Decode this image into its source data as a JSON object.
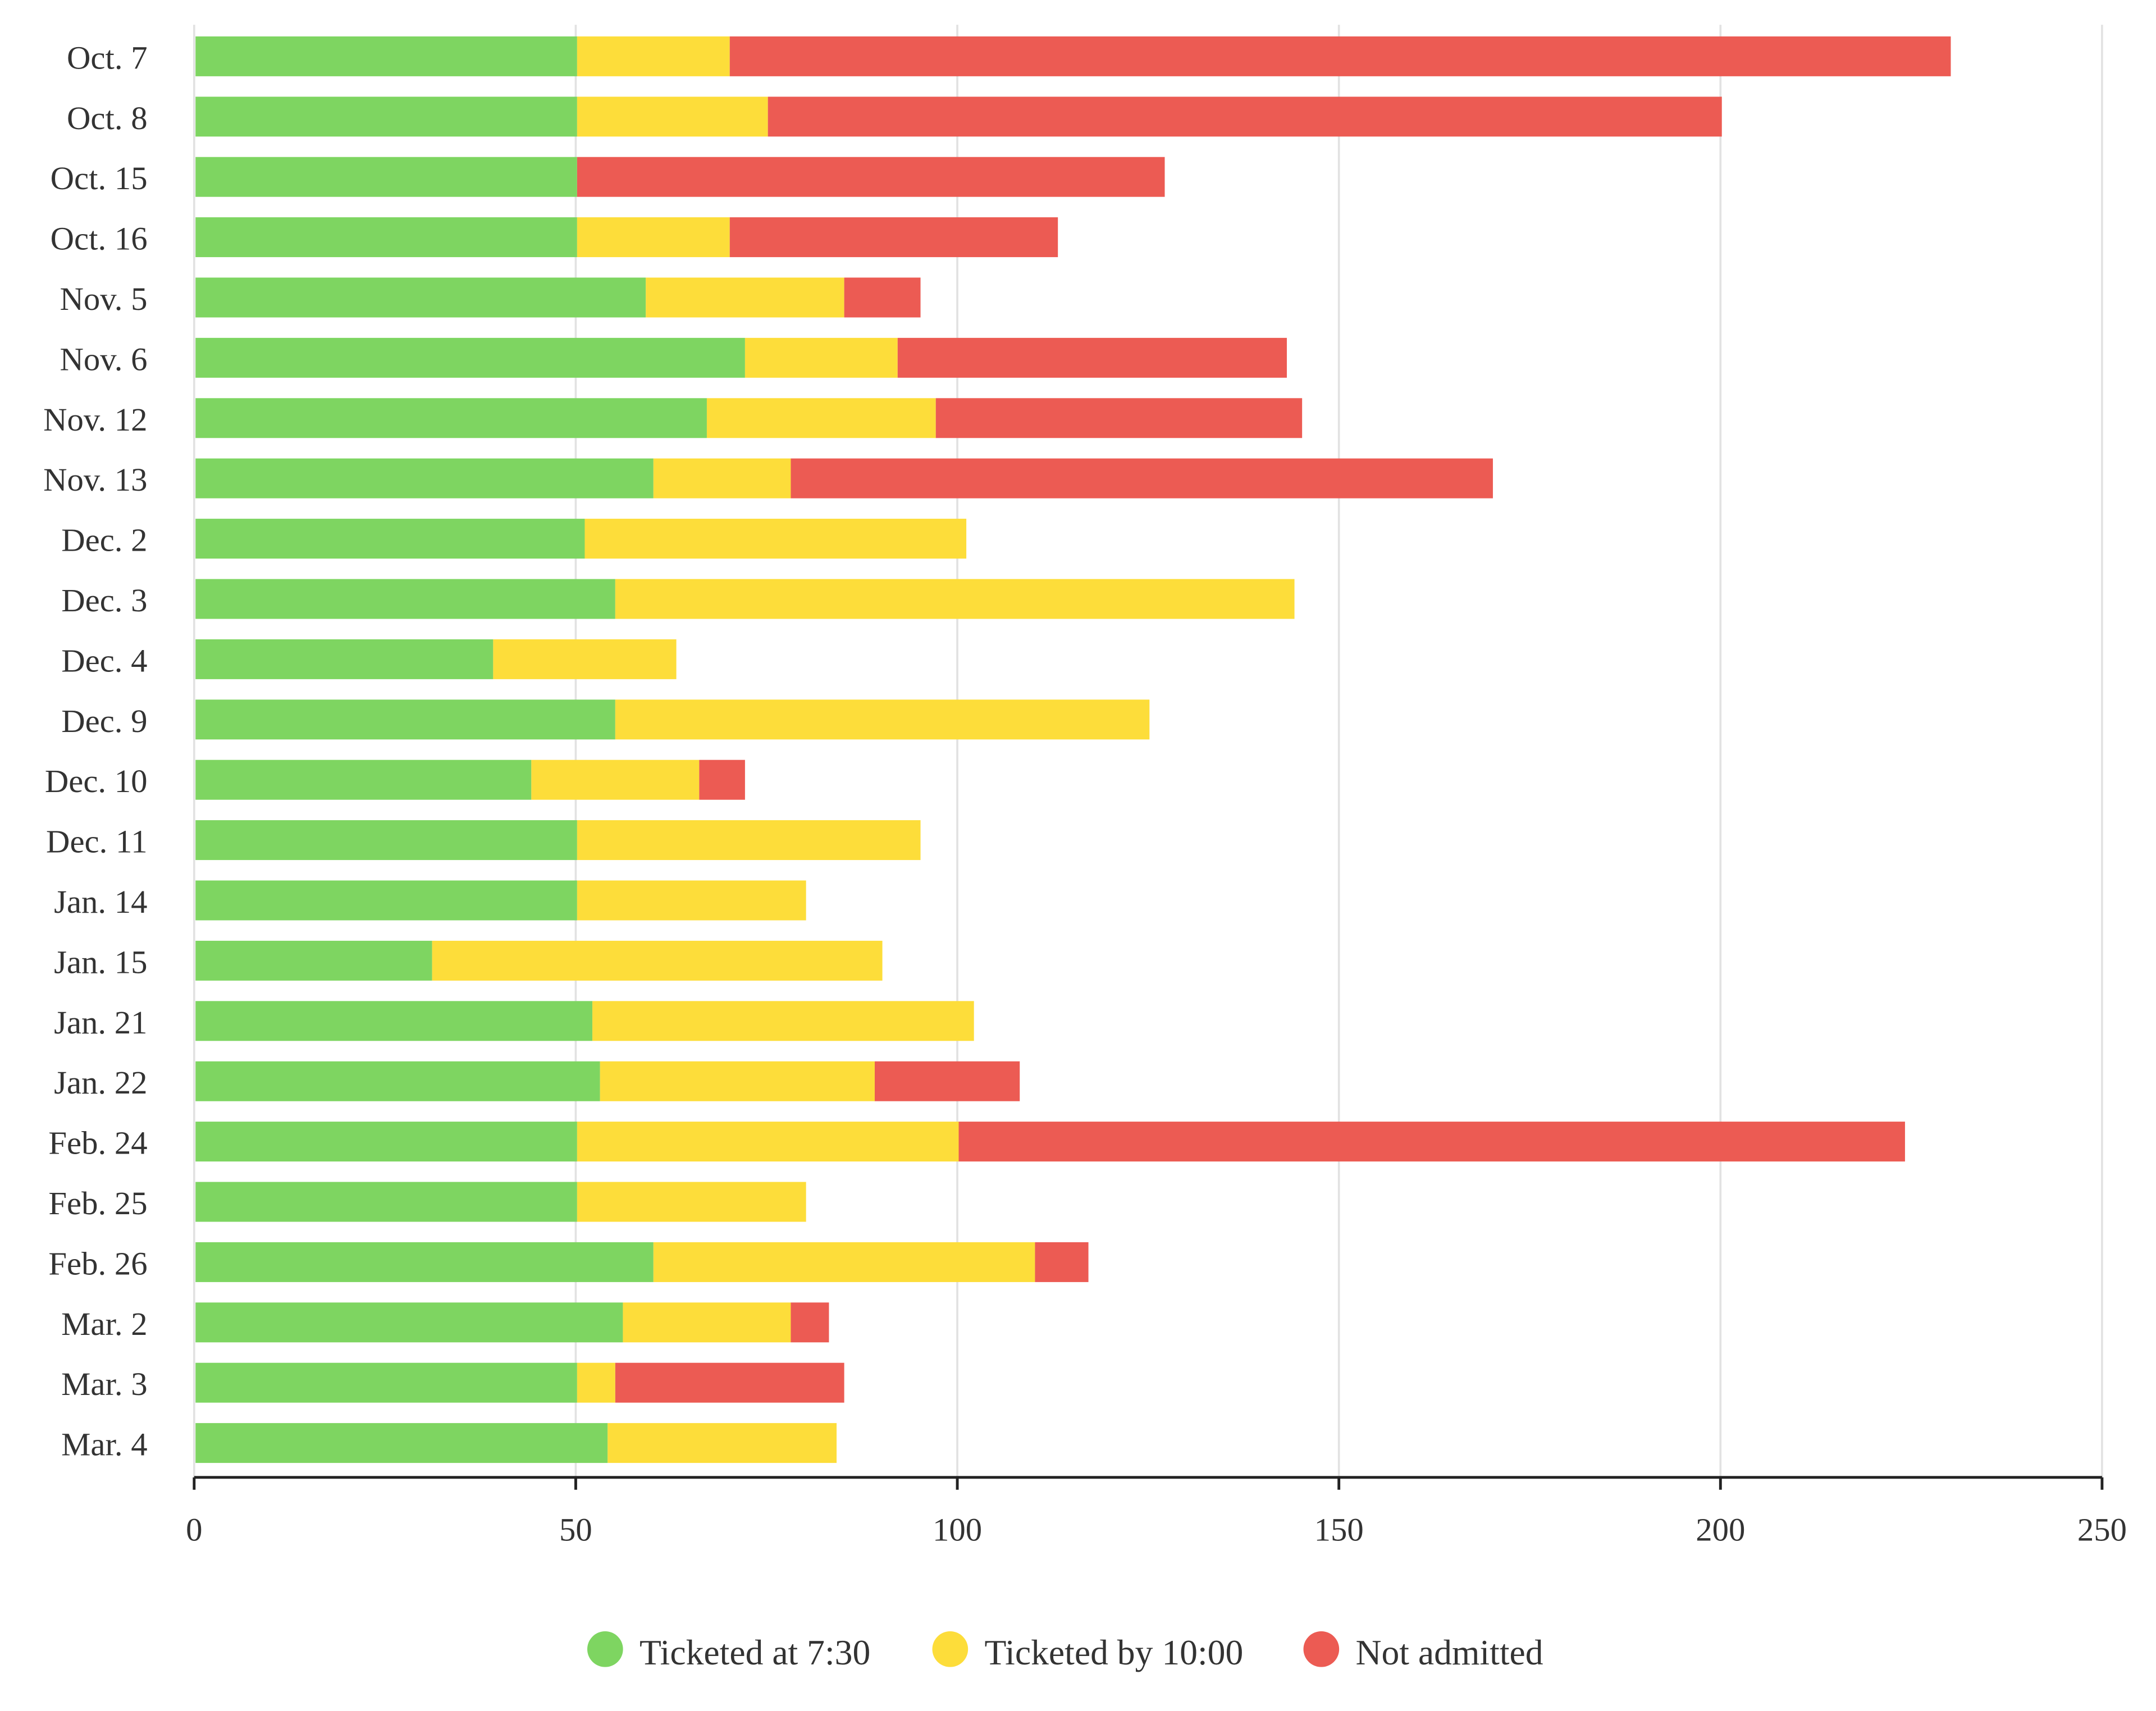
{
  "chart_data": {
    "type": "bar",
    "orientation": "horizontal",
    "stacked": true,
    "categories": [
      "Oct. 7",
      "Oct. 8",
      "Oct. 15",
      "Oct. 16",
      "Nov. 5",
      "Nov. 6",
      "Nov. 12",
      "Nov. 13",
      "Dec. 2",
      "Dec. 3",
      "Dec. 4",
      "Dec. 9",
      "Dec. 10",
      "Dec. 11",
      "Jan. 14",
      "Jan. 15",
      "Jan. 21",
      "Jan. 22",
      "Feb. 24",
      "Feb. 25",
      "Feb. 26",
      "Mar. 2",
      "Mar. 3",
      "Mar. 4"
    ],
    "series": [
      {
        "name": "Ticketed at 7:30",
        "color": "#7ed561",
        "values": [
          50,
          50,
          50,
          50,
          59,
          72,
          67,
          60,
          51,
          55,
          39,
          55,
          44,
          50,
          50,
          31,
          52,
          53,
          50,
          50,
          60,
          56,
          50,
          54
        ]
      },
      {
        "name": "Ticketed by 10:00",
        "color": "#fddd3a",
        "values": [
          20,
          25,
          0,
          20,
          26,
          20,
          30,
          18,
          50,
          89,
          24,
          70,
          22,
          45,
          30,
          59,
          50,
          36,
          50,
          30,
          50,
          22,
          5,
          30
        ]
      },
      {
        "name": "Not admitted",
        "color": "#ec5b53",
        "values": [
          160,
          125,
          77,
          43,
          10,
          51,
          48,
          92,
          0,
          0,
          0,
          0,
          6,
          0,
          0,
          0,
          0,
          19,
          124,
          0,
          7,
          5,
          30,
          0
        ]
      }
    ],
    "xlim": [
      0,
      250
    ],
    "xticks": [
      "0",
      "50",
      "100",
      "150",
      "200",
      "250"
    ],
    "grid": true,
    "legend": "bottom",
    "title": "",
    "xlabel": "",
    "ylabel": ""
  }
}
